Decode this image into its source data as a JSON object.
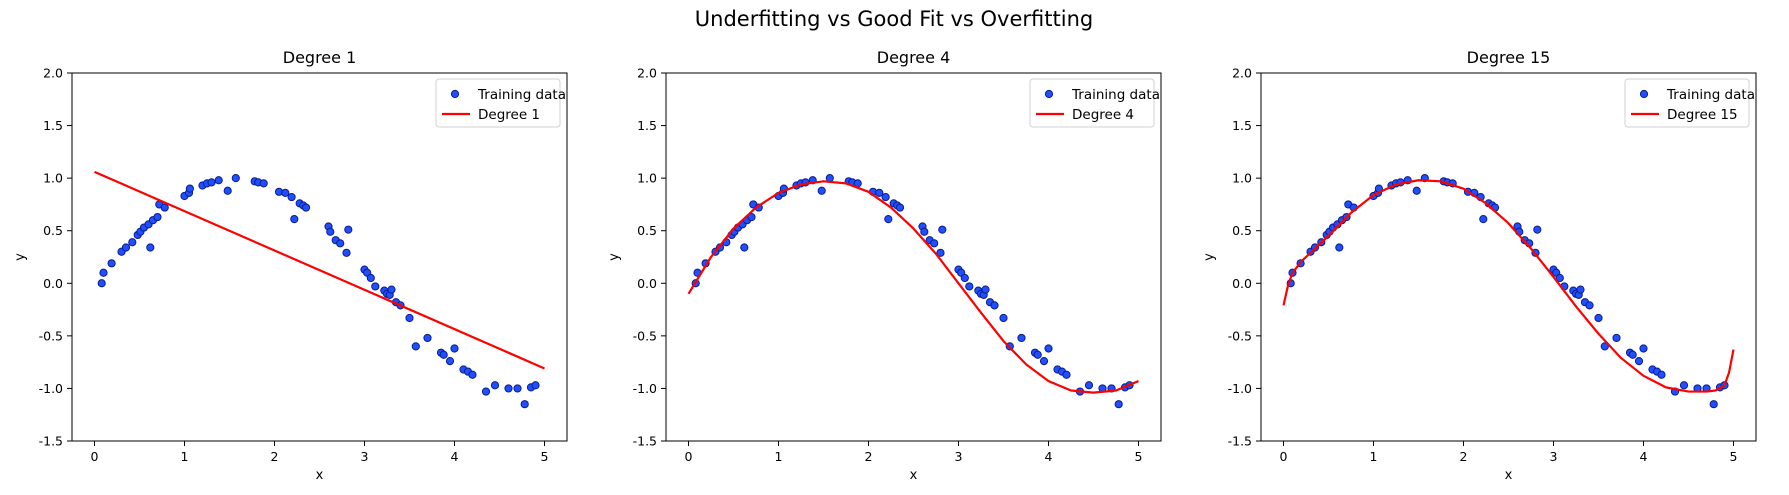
{
  "figure": {
    "suptitle": "Underfitting vs Good Fit vs Overfitting"
  },
  "colors": {
    "points_fill": "#1f4fff",
    "points_edge": "#0b1d8c",
    "fit_line": "#ff0000"
  },
  "chart_data": [
    {
      "type": "scatter",
      "title": "Degree 1",
      "xlabel": "x",
      "ylabel": "y",
      "xlim": [
        -0.25,
        5.25
      ],
      "ylim": [
        -1.5,
        2.0
      ],
      "xticks": [
        0,
        1,
        2,
        3,
        4,
        5
      ],
      "yticks": [
        -1.5,
        -1.0,
        -0.5,
        0.0,
        0.5,
        1.0,
        1.5,
        2.0
      ],
      "grid": false,
      "legend": {
        "placement": "top-right",
        "entries": [
          "Training data",
          "Degree 1"
        ]
      },
      "series": [
        {
          "name": "Training data",
          "kind": "scatter",
          "x": [
            0.08,
            0.1,
            0.19,
            0.3,
            0.35,
            0.42,
            0.48,
            0.51,
            0.55,
            0.6,
            0.62,
            0.65,
            0.7,
            0.72,
            0.78,
            1.0,
            1.05,
            1.06,
            1.2,
            1.25,
            1.3,
            1.38,
            1.48,
            1.57,
            1.78,
            1.82,
            1.88,
            2.05,
            2.12,
            2.19,
            2.22,
            2.28,
            2.32,
            2.35,
            2.6,
            2.62,
            2.68,
            2.73,
            2.8,
            2.82,
            3.0,
            3.03,
            3.07,
            3.12,
            3.22,
            3.25,
            3.28,
            3.3,
            3.35,
            3.4,
            3.5,
            3.57,
            3.7,
            3.85,
            3.88,
            3.95,
            4.0,
            4.1,
            4.15,
            4.2,
            4.35,
            4.45,
            4.6,
            4.7,
            4.78,
            4.85,
            4.9
          ],
          "y": [
            0.0,
            0.1,
            0.19,
            0.3,
            0.34,
            0.39,
            0.46,
            0.49,
            0.53,
            0.56,
            0.34,
            0.6,
            0.63,
            0.75,
            0.72,
            0.83,
            0.86,
            0.9,
            0.93,
            0.95,
            0.96,
            0.98,
            0.88,
            1.0,
            0.97,
            0.96,
            0.95,
            0.87,
            0.86,
            0.82,
            0.61,
            0.76,
            0.74,
            0.72,
            0.54,
            0.49,
            0.41,
            0.38,
            0.29,
            0.51,
            0.13,
            0.1,
            0.05,
            -0.03,
            -0.07,
            -0.1,
            -0.11,
            -0.06,
            -0.18,
            -0.21,
            -0.33,
            -0.6,
            -0.52,
            -0.66,
            -0.68,
            -0.74,
            -0.62,
            -0.82,
            -0.84,
            -0.87,
            -1.03,
            -0.97,
            -1.0,
            -1.0,
            -1.15,
            -0.99,
            -0.97
          ]
        },
        {
          "name": "Degree 1",
          "kind": "line",
          "x": [
            0,
            5
          ],
          "y": [
            1.06,
            -0.81
          ]
        }
      ]
    },
    {
      "type": "scatter",
      "title": "Degree 4",
      "xlabel": "x",
      "ylabel": "y",
      "xlim": [
        -0.25,
        5.25
      ],
      "ylim": [
        -1.5,
        2.0
      ],
      "xticks": [
        0,
        1,
        2,
        3,
        4,
        5
      ],
      "yticks": [
        -1.5,
        -1.0,
        -0.5,
        0.0,
        0.5,
        1.0,
        1.5,
        2.0
      ],
      "grid": false,
      "legend": {
        "placement": "top-right",
        "entries": [
          "Training data",
          "Degree 4"
        ]
      },
      "series": [
        {
          "name": "Training data",
          "kind": "scatter",
          "x": [
            0.08,
            0.1,
            0.19,
            0.3,
            0.35,
            0.42,
            0.48,
            0.51,
            0.55,
            0.6,
            0.62,
            0.65,
            0.7,
            0.72,
            0.78,
            1.0,
            1.05,
            1.06,
            1.2,
            1.25,
            1.3,
            1.38,
            1.48,
            1.57,
            1.78,
            1.82,
            1.88,
            2.05,
            2.12,
            2.19,
            2.22,
            2.28,
            2.32,
            2.35,
            2.6,
            2.62,
            2.68,
            2.73,
            2.8,
            2.82,
            3.0,
            3.03,
            3.07,
            3.12,
            3.22,
            3.25,
            3.28,
            3.3,
            3.35,
            3.4,
            3.5,
            3.57,
            3.7,
            3.85,
            3.88,
            3.95,
            4.0,
            4.1,
            4.15,
            4.2,
            4.35,
            4.45,
            4.6,
            4.7,
            4.78,
            4.85,
            4.9
          ],
          "y": [
            0.0,
            0.1,
            0.19,
            0.3,
            0.34,
            0.39,
            0.46,
            0.49,
            0.53,
            0.56,
            0.34,
            0.6,
            0.63,
            0.75,
            0.72,
            0.83,
            0.86,
            0.9,
            0.93,
            0.95,
            0.96,
            0.98,
            0.88,
            1.0,
            0.97,
            0.96,
            0.95,
            0.87,
            0.86,
            0.82,
            0.61,
            0.76,
            0.74,
            0.72,
            0.54,
            0.49,
            0.41,
            0.38,
            0.29,
            0.51,
            0.13,
            0.1,
            0.05,
            -0.03,
            -0.07,
            -0.1,
            -0.11,
            -0.06,
            -0.18,
            -0.21,
            -0.33,
            -0.6,
            -0.52,
            -0.66,
            -0.68,
            -0.74,
            -0.62,
            -0.82,
            -0.84,
            -0.87,
            -1.03,
            -0.97,
            -1.0,
            -1.0,
            -1.15,
            -0.99,
            -0.97
          ]
        },
        {
          "name": "Degree 4",
          "kind": "line",
          "x": [
            0.0,
            0.25,
            0.5,
            0.75,
            1.0,
            1.25,
            1.5,
            1.75,
            2.0,
            2.25,
            2.5,
            2.75,
            3.0,
            3.25,
            3.5,
            3.75,
            4.0,
            4.25,
            4.5,
            4.75,
            5.0
          ],
          "y": [
            -0.1,
            0.25,
            0.52,
            0.72,
            0.86,
            0.94,
            0.97,
            0.95,
            0.87,
            0.72,
            0.52,
            0.28,
            0.0,
            -0.28,
            -0.55,
            -0.77,
            -0.93,
            -1.02,
            -1.04,
            -1.02,
            -0.93
          ]
        }
      ]
    },
    {
      "type": "scatter",
      "title": "Degree 15",
      "xlabel": "x",
      "ylabel": "y",
      "xlim": [
        -0.25,
        5.25
      ],
      "ylim": [
        -1.5,
        2.0
      ],
      "xticks": [
        0,
        1,
        2,
        3,
        4,
        5
      ],
      "yticks": [
        -1.5,
        -1.0,
        -0.5,
        0.0,
        0.5,
        1.0,
        1.5,
        2.0
      ],
      "grid": false,
      "legend": {
        "placement": "top-right",
        "entries": [
          "Training data",
          "Degree 15"
        ]
      },
      "series": [
        {
          "name": "Training data",
          "kind": "scatter",
          "x": [
            0.08,
            0.1,
            0.19,
            0.3,
            0.35,
            0.42,
            0.48,
            0.51,
            0.55,
            0.6,
            0.62,
            0.65,
            0.7,
            0.72,
            0.78,
            1.0,
            1.05,
            1.06,
            1.2,
            1.25,
            1.3,
            1.38,
            1.48,
            1.57,
            1.78,
            1.82,
            1.88,
            2.05,
            2.12,
            2.19,
            2.22,
            2.28,
            2.32,
            2.35,
            2.6,
            2.62,
            2.68,
            2.73,
            2.8,
            2.82,
            3.0,
            3.03,
            3.07,
            3.12,
            3.22,
            3.25,
            3.28,
            3.3,
            3.35,
            3.4,
            3.5,
            3.57,
            3.7,
            3.85,
            3.88,
            3.95,
            4.0,
            4.1,
            4.15,
            4.2,
            4.35,
            4.45,
            4.6,
            4.7,
            4.78,
            4.85,
            4.9
          ],
          "y": [
            0.0,
            0.1,
            0.19,
            0.3,
            0.34,
            0.39,
            0.46,
            0.49,
            0.53,
            0.56,
            0.34,
            0.6,
            0.63,
            0.75,
            0.72,
            0.83,
            0.86,
            0.9,
            0.93,
            0.95,
            0.96,
            0.98,
            0.88,
            1.0,
            0.97,
            0.96,
            0.95,
            0.87,
            0.86,
            0.82,
            0.61,
            0.76,
            0.74,
            0.72,
            0.54,
            0.49,
            0.41,
            0.38,
            0.29,
            0.51,
            0.13,
            0.1,
            0.05,
            -0.03,
            -0.07,
            -0.1,
            -0.11,
            -0.06,
            -0.18,
            -0.21,
            -0.33,
            -0.6,
            -0.52,
            -0.66,
            -0.68,
            -0.74,
            -0.62,
            -0.82,
            -0.84,
            -0.87,
            -1.03,
            -0.97,
            -1.0,
            -1.0,
            -1.15,
            -0.99,
            -0.97
          ]
        },
        {
          "name": "Degree 15",
          "kind": "line",
          "x": [
            0.0,
            0.05,
            0.1,
            0.2,
            0.35,
            0.5,
            0.75,
            1.0,
            1.25,
            1.5,
            1.75,
            2.0,
            2.25,
            2.5,
            2.75,
            3.0,
            3.25,
            3.5,
            3.75,
            4.0,
            4.25,
            4.5,
            4.7,
            4.8,
            4.9,
            4.95,
            5.0
          ],
          "y": [
            -0.21,
            -0.02,
            0.1,
            0.21,
            0.33,
            0.45,
            0.67,
            0.84,
            0.94,
            0.98,
            0.97,
            0.9,
            0.76,
            0.57,
            0.33,
            0.06,
            -0.22,
            -0.48,
            -0.71,
            -0.88,
            -0.99,
            -1.03,
            -1.03,
            -1.02,
            -0.97,
            -0.85,
            -0.63
          ]
        }
      ]
    }
  ]
}
